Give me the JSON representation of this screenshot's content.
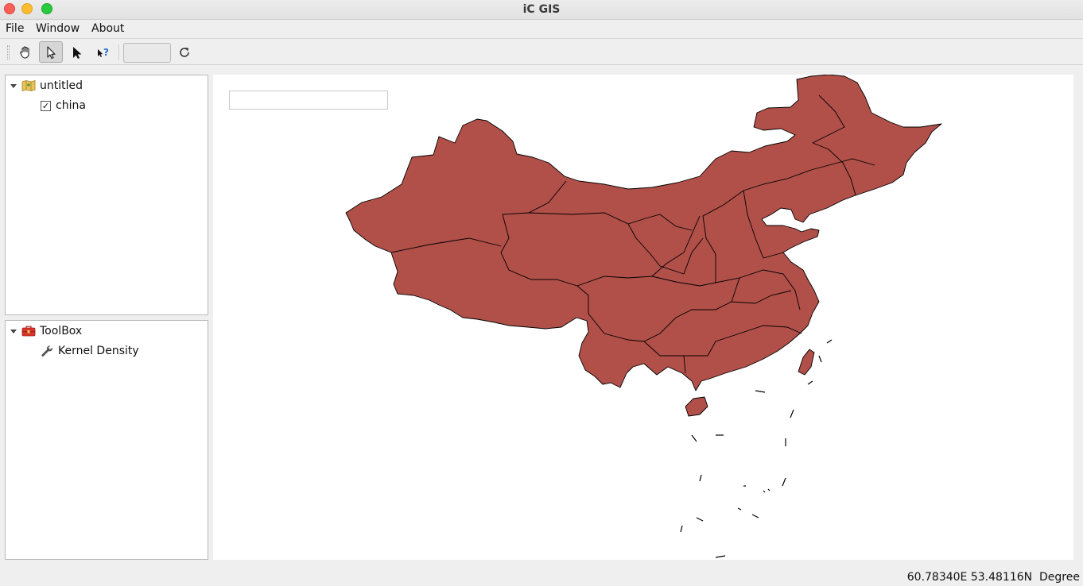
{
  "window": {
    "title": "iC GIS"
  },
  "menu": {
    "items": [
      "File",
      "Window",
      "About"
    ]
  },
  "toolbar": {
    "buttons": [
      {
        "icon": "hand-pan-icon",
        "active": false
      },
      {
        "icon": "select-arrow-icon",
        "active": true
      },
      {
        "icon": "pointer-icon",
        "active": false
      },
      {
        "icon": "what-is-this-icon",
        "active": false
      }
    ],
    "field_value": "",
    "refresh_icon": "refresh-icon"
  },
  "layers_panel": {
    "root": {
      "label": "untitled",
      "icon": "map-icon",
      "expanded": true
    },
    "layers": [
      {
        "label": "china",
        "checked": true,
        "check_mark": "✓"
      }
    ]
  },
  "toolbox_panel": {
    "root": {
      "label": "ToolBox",
      "icon": "toolbox-icon",
      "expanded": true
    },
    "tools": [
      {
        "label": "Kernel Density",
        "icon": "wrench-icon"
      }
    ]
  },
  "map": {
    "search_value": "",
    "layer_name": "china",
    "fill_color": "#b14f49",
    "stroke_color": "#000000"
  },
  "status": {
    "coordinates": "60.78340E 53.48116N",
    "units": "Degree"
  }
}
